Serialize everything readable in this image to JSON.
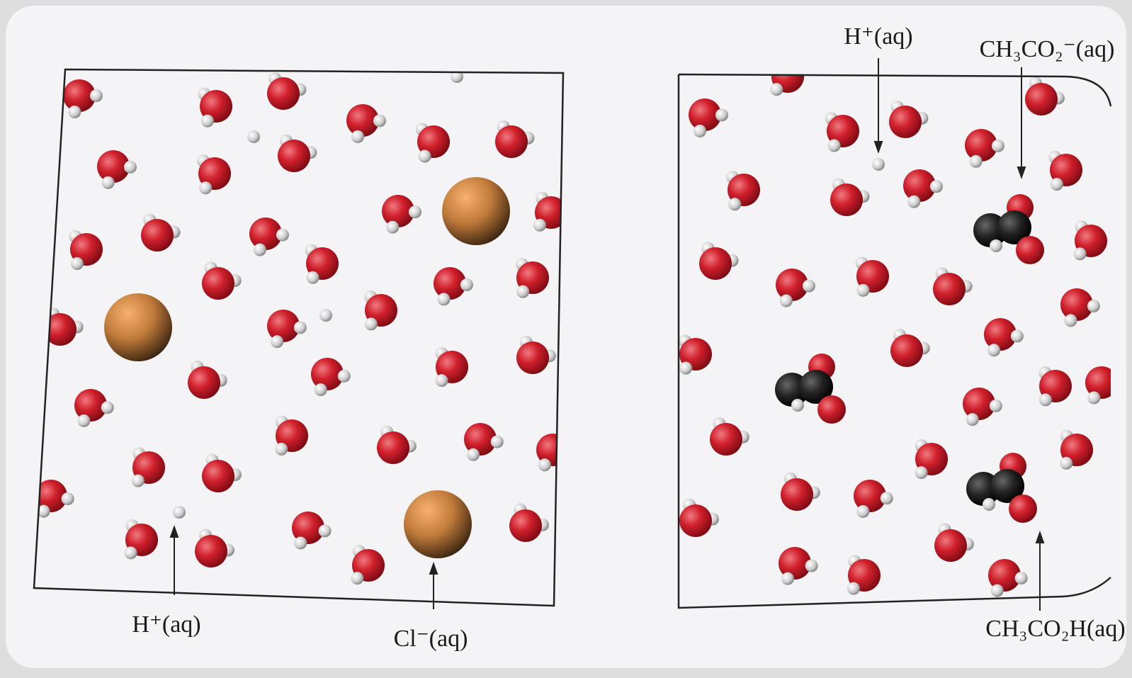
{
  "left_panel": {
    "labels": [
      "H⁺(aq)",
      "Cl⁻(aq)"
    ]
  },
  "right_panel": {
    "labels": [
      "H⁺(aq)",
      "CH₃CO₂⁻(aq)",
      "CH₃CO₂H(aq)"
    ]
  }
}
